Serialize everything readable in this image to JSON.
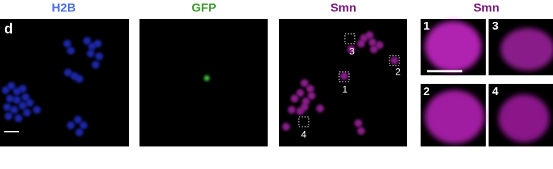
{
  "panel_label": "d",
  "columns": [
    {
      "title": "H2B"
    },
    {
      "title": "GFP"
    },
    {
      "title": "Smn"
    },
    {
      "title": "Smn"
    }
  ],
  "box_labels": [
    "3",
    "2",
    "1",
    "4"
  ],
  "inset_labels": [
    "1",
    "3",
    "2",
    "4"
  ]
}
